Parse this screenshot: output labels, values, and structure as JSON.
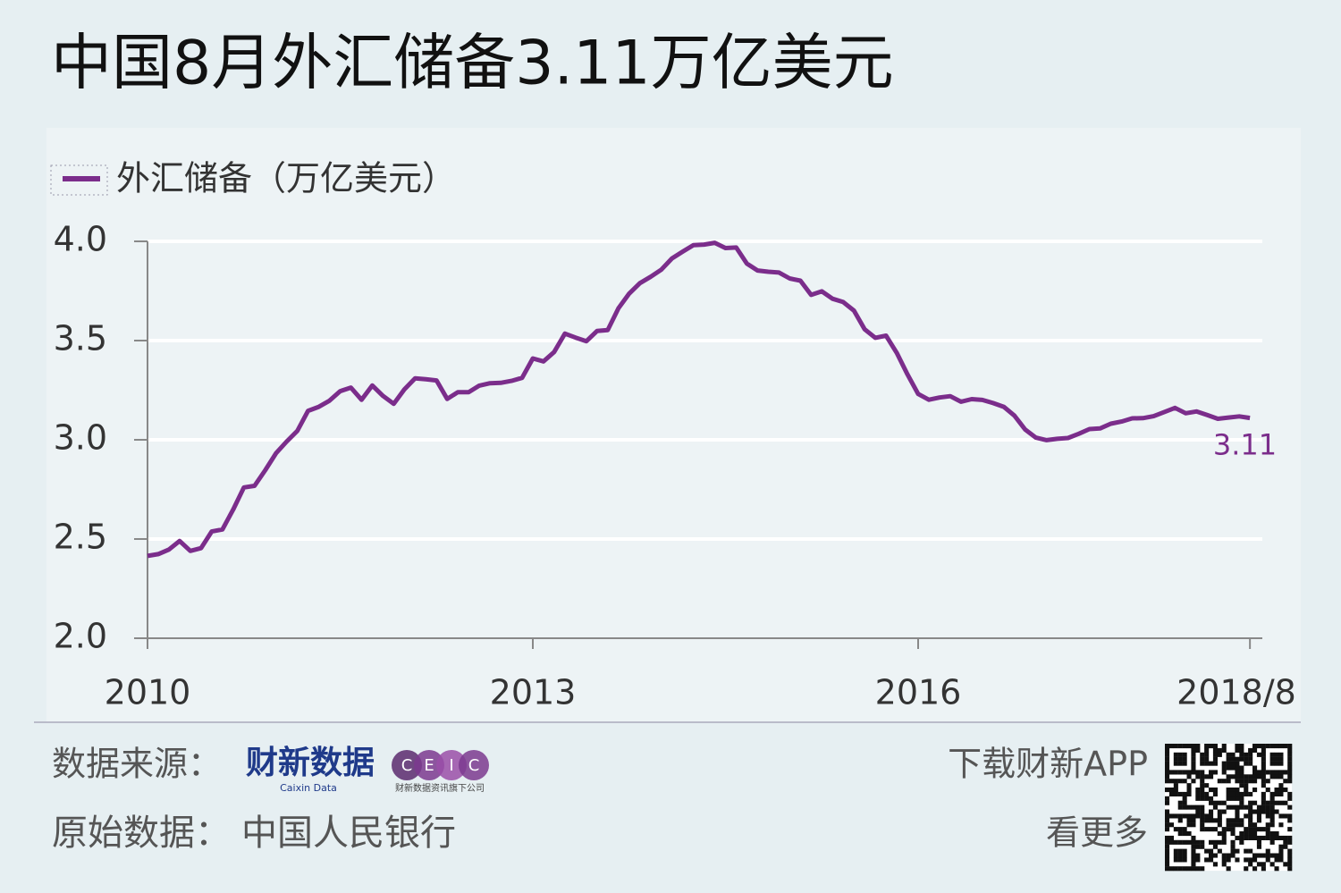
{
  "chart_data": {
    "type": "line",
    "title": "中国8月外汇储备3.11万亿美元",
    "categories": [
      "2010",
      null,
      null,
      null,
      null,
      null,
      null,
      null,
      null,
      null,
      null,
      null,
      null,
      null,
      null,
      null,
      null,
      null,
      null,
      null,
      null,
      null,
      null,
      null,
      null,
      null,
      null,
      null,
      null,
      null,
      null,
      null,
      null,
      null,
      null,
      null,
      "2013",
      null,
      null,
      null,
      null,
      null,
      null,
      null,
      null,
      null,
      null,
      null,
      null,
      null,
      null,
      null,
      null,
      null,
      null,
      null,
      null,
      null,
      null,
      null,
      null,
      null,
      null,
      null,
      null,
      null,
      null,
      null,
      null,
      null,
      null,
      null,
      "2016",
      null,
      null,
      null,
      null,
      null,
      null,
      null,
      null,
      null,
      null,
      null,
      null,
      null,
      null,
      null,
      null,
      null,
      null,
      null,
      null,
      null,
      null,
      null,
      null,
      null,
      null,
      null,
      null,
      null,
      null,
      "2018/8"
    ],
    "series": [
      {
        "name": "外汇储备（万亿美元）",
        "color": "#7b2d8b",
        "values": [
          2.415,
          2.424,
          2.447,
          2.49,
          2.44,
          2.454,
          2.538,
          2.548,
          2.648,
          2.76,
          2.768,
          2.847,
          2.932,
          2.991,
          3.045,
          3.146,
          3.166,
          3.197,
          3.245,
          3.263,
          3.202,
          3.274,
          3.221,
          3.181,
          3.254,
          3.31,
          3.305,
          3.299,
          3.206,
          3.24,
          3.24,
          3.273,
          3.285,
          3.287,
          3.297,
          3.312,
          3.41,
          3.395,
          3.443,
          3.535,
          3.515,
          3.497,
          3.548,
          3.553,
          3.663,
          3.737,
          3.789,
          3.821,
          3.857,
          3.914,
          3.948,
          3.981,
          3.984,
          3.993,
          3.966,
          3.969,
          3.888,
          3.853,
          3.847,
          3.843,
          3.813,
          3.802,
          3.73,
          3.748,
          3.711,
          3.694,
          3.651,
          3.557,
          3.514,
          3.525,
          3.438,
          3.33,
          3.231,
          3.202,
          3.213,
          3.22,
          3.192,
          3.205,
          3.201,
          3.185,
          3.166,
          3.121,
          3.052,
          3.011,
          2.998,
          3.005,
          3.009,
          3.03,
          3.054,
          3.057,
          3.081,
          3.092,
          3.108,
          3.109,
          3.119,
          3.14,
          3.161,
          3.134,
          3.143,
          3.125,
          3.106,
          3.112,
          3.118,
          3.11
        ],
        "value_labels": [
          null,
          null,
          null,
          null,
          null,
          null,
          null,
          null,
          null,
          null,
          null,
          null,
          null,
          null,
          null,
          null,
          null,
          null,
          null,
          null,
          null,
          null,
          null,
          null,
          null,
          null,
          null,
          null,
          null,
          null,
          null,
          null,
          null,
          null,
          null,
          null,
          null,
          null,
          null,
          null,
          null,
          null,
          null,
          null,
          null,
          null,
          null,
          null,
          null,
          null,
          null,
          null,
          null,
          null,
          null,
          null,
          null,
          null,
          null,
          null,
          null,
          null,
          null,
          null,
          null,
          null,
          null,
          null,
          null,
          null,
          null,
          null,
          null,
          null,
          null,
          null,
          null,
          null,
          null,
          null,
          null,
          null,
          null,
          null,
          null,
          null,
          null,
          null,
          null,
          null,
          null,
          null,
          null,
          null,
          null,
          null,
          null,
          null,
          null,
          null,
          null,
          null,
          null,
          "3.11"
        ]
      }
    ],
    "ylim": [
      2,
      4
    ],
    "yticks": [
      {
        "value": 2,
        "label": "2.0"
      },
      2.5,
      {
        "value": 3,
        "label": "3.0"
      },
      3.5,
      {
        "value": 4,
        "label": "4.0"
      }
    ],
    "grid": true
  },
  "footer": {
    "source_label": "数据来源：",
    "caixin_logo": "财新数据",
    "caixin_logo_en": "Caixin Data",
    "ceic_letters": [
      "C",
      "E",
      "I",
      "C"
    ],
    "ceic_caption": "财新数据资讯旗下公司",
    "original_label": "原始数据：",
    "original_source": "中国人民银行",
    "app_line1": "下载财新APP",
    "app_line2": "看更多"
  }
}
